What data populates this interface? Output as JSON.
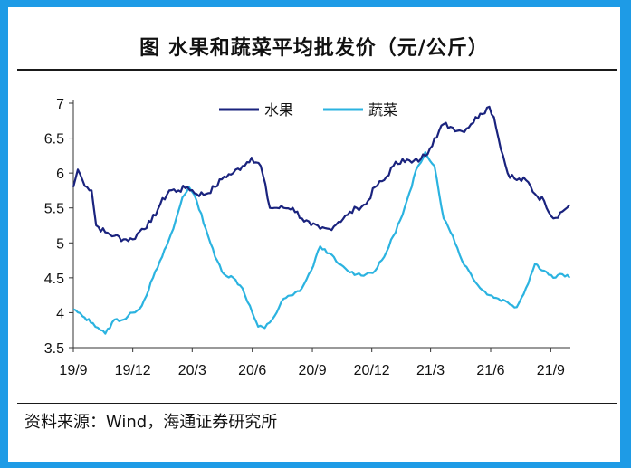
{
  "chart_data": {
    "type": "line",
    "title": "图  水果和蔬菜平均批发价（元/公斤）",
    "source": "资料来源：Wind，海通证券研究所",
    "xlabel": "",
    "ylabel": "",
    "x_tick_labels": [
      "19/9",
      "19/12",
      "20/3",
      "20/6",
      "20/9",
      "20/12",
      "21/3",
      "21/6",
      "21/9"
    ],
    "y_ticks": [
      3.5,
      4,
      4.5,
      5,
      5.5,
      6,
      6.5,
      7
    ],
    "ylim": [
      3.5,
      7
    ],
    "grid": false,
    "legend_position": "top-center",
    "series": [
      {
        "name": "水果",
        "color": "#1A237E",
        "x": [
          "2019-09-01",
          "2019-09-08",
          "2019-09-15",
          "2019-09-22",
          "2019-09-29",
          "2019-10-06",
          "2019-10-20",
          "2019-11-03",
          "2019-11-17",
          "2019-12-01",
          "2019-12-15",
          "2019-12-29",
          "2020-01-12",
          "2020-01-26",
          "2020-02-09",
          "2020-02-23",
          "2020-03-08",
          "2020-03-22",
          "2020-04-05",
          "2020-04-19",
          "2020-05-03",
          "2020-05-17",
          "2020-05-31",
          "2020-06-14",
          "2020-06-28",
          "2020-07-05",
          "2020-07-19",
          "2020-08-02",
          "2020-08-16",
          "2020-08-30",
          "2020-09-13",
          "2020-09-27",
          "2020-10-11",
          "2020-10-25",
          "2020-11-08",
          "2020-11-22",
          "2020-12-06",
          "2020-12-20",
          "2021-01-03",
          "2021-01-17",
          "2021-01-31",
          "2021-02-14",
          "2021-02-28",
          "2021-03-07",
          "2021-03-21",
          "2021-04-04",
          "2021-04-18",
          "2021-05-02",
          "2021-05-16",
          "2021-05-30",
          "2021-06-06",
          "2021-06-13",
          "2021-06-27",
          "2021-07-11",
          "2021-07-25",
          "2021-08-08",
          "2021-08-22",
          "2021-09-05",
          "2021-09-19",
          "2021-09-30"
        ],
        "values": [
          5.8,
          6.05,
          5.9,
          5.8,
          5.75,
          5.25,
          5.15,
          5.1,
          5.05,
          5.05,
          5.2,
          5.3,
          5.55,
          5.75,
          5.75,
          5.8,
          5.7,
          5.7,
          5.8,
          5.95,
          6.0,
          6.1,
          6.22,
          6.1,
          5.5,
          5.5,
          5.5,
          5.5,
          5.35,
          5.25,
          5.2,
          5.2,
          5.3,
          5.4,
          5.5,
          5.55,
          5.8,
          5.9,
          6.1,
          6.2,
          6.15,
          6.2,
          6.35,
          6.5,
          6.7,
          6.65,
          6.6,
          6.7,
          6.85,
          6.95,
          6.8,
          6.5,
          6.0,
          5.9,
          5.9,
          5.7,
          5.6,
          5.35,
          5.45,
          5.55
        ]
      },
      {
        "name": "蔬菜",
        "color": "#2BB3E0",
        "x": [
          "2019-09-01",
          "2019-09-15",
          "2019-10-01",
          "2019-10-20",
          "2019-11-03",
          "2019-11-17",
          "2019-12-01",
          "2019-12-15",
          "2020-01-01",
          "2020-01-15",
          "2020-02-01",
          "2020-02-15",
          "2020-02-25",
          "2020-03-08",
          "2020-03-22",
          "2020-04-05",
          "2020-04-19",
          "2020-05-03",
          "2020-05-17",
          "2020-06-01",
          "2020-06-10",
          "2020-06-20",
          "2020-07-05",
          "2020-07-19",
          "2020-08-02",
          "2020-08-16",
          "2020-08-30",
          "2020-09-13",
          "2020-09-27",
          "2020-10-11",
          "2020-10-25",
          "2020-11-08",
          "2020-11-22",
          "2020-12-06",
          "2020-12-20",
          "2021-01-03",
          "2021-01-17",
          "2021-01-31",
          "2021-02-07",
          "2021-02-14",
          "2021-02-21",
          "2021-03-07",
          "2021-03-21",
          "2021-04-04",
          "2021-04-18",
          "2021-05-02",
          "2021-05-16",
          "2021-05-30",
          "2021-06-13",
          "2021-06-27",
          "2021-07-11",
          "2021-07-25",
          "2021-08-08",
          "2021-08-22",
          "2021-09-05",
          "2021-09-19",
          "2021-09-30"
        ],
        "values": [
          4.05,
          3.95,
          3.85,
          3.7,
          3.9,
          3.9,
          4.0,
          4.1,
          4.5,
          4.8,
          5.2,
          5.65,
          5.8,
          5.6,
          5.2,
          4.8,
          4.55,
          4.5,
          4.35,
          4.0,
          3.8,
          3.78,
          3.95,
          4.2,
          4.25,
          4.35,
          4.6,
          4.95,
          4.85,
          4.7,
          4.6,
          4.55,
          4.55,
          4.6,
          4.8,
          5.1,
          5.4,
          5.8,
          6.05,
          6.15,
          6.3,
          6.1,
          5.35,
          5.1,
          4.75,
          4.55,
          4.35,
          4.25,
          4.2,
          4.15,
          4.08,
          4.35,
          4.7,
          4.6,
          4.5,
          4.55,
          4.5
        ]
      }
    ]
  }
}
